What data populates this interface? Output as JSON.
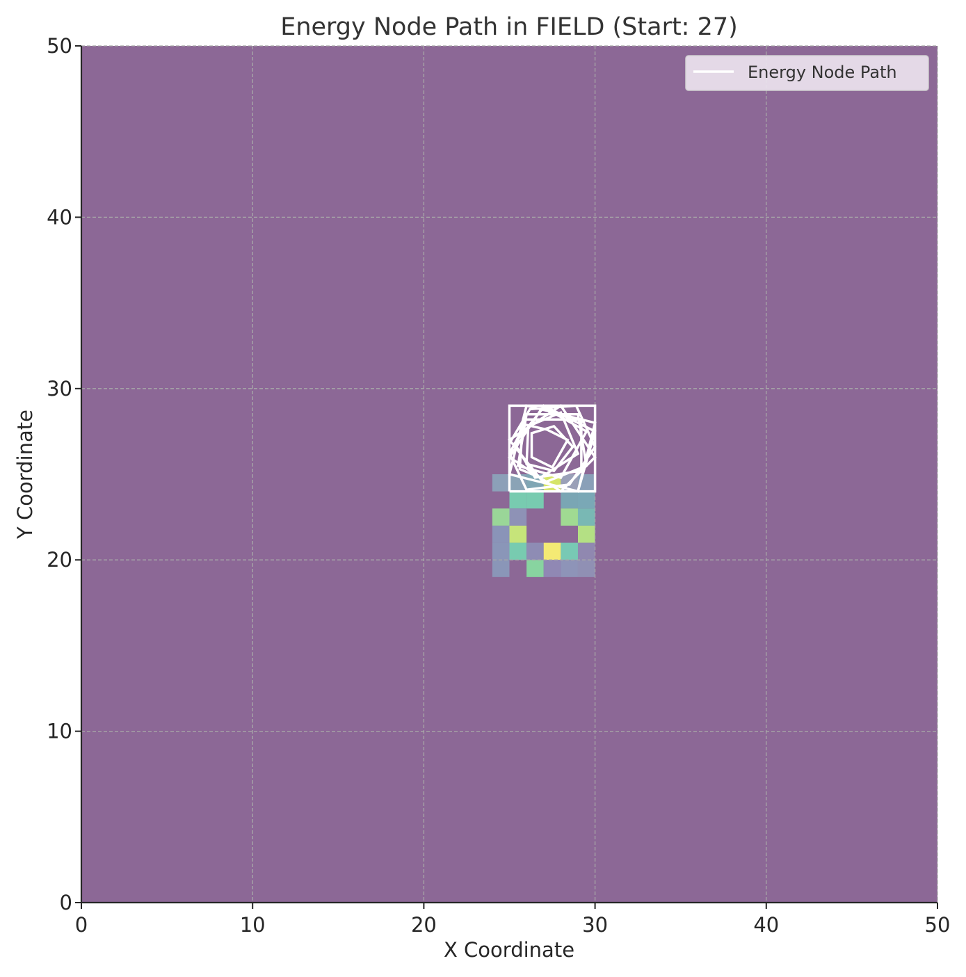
{
  "chart_data": {
    "type": "heatmap",
    "title": "Energy Node Path in FIELD (Start: 27)",
    "xlabel": "X Coordinate",
    "ylabel": "Y Coordinate",
    "xlim": [
      0,
      50
    ],
    "ylim": [
      0,
      50
    ],
    "xticks": [
      0,
      10,
      20,
      30,
      40,
      50
    ],
    "yticks": [
      0,
      10,
      20,
      30,
      40,
      50
    ],
    "grid": true,
    "legend": {
      "placement": "top-right",
      "entries": [
        "Energy Node Path"
      ]
    },
    "colors": {
      "background_field": "#8c6896",
      "path": "#ffffff",
      "grid": "#a8a8a8",
      "axis": "#262626"
    },
    "field_cells": [
      {
        "x": 24,
        "y": 24,
        "color": "#8ca0b8"
      },
      {
        "x": 25,
        "y": 24,
        "color": "#8aa3b6"
      },
      {
        "x": 26,
        "y": 24,
        "color": "#7fa6b4"
      },
      {
        "x": 27,
        "y": 24,
        "color": "#d6e568"
      },
      {
        "x": 28,
        "y": 24,
        "color": "#9aa0b8"
      },
      {
        "x": 29,
        "y": 24,
        "color": "#8aa0b8"
      },
      {
        "x": 25,
        "y": 23,
        "color": "#78cbb0"
      },
      {
        "x": 26,
        "y": 23,
        "color": "#78cbb0"
      },
      {
        "x": 28,
        "y": 23,
        "color": "#7aa6b4"
      },
      {
        "x": 29,
        "y": 23,
        "color": "#7aa8b6"
      },
      {
        "x": 24,
        "y": 22,
        "color": "#9ad698"
      },
      {
        "x": 25,
        "y": 22,
        "color": "#8e92b6"
      },
      {
        "x": 28,
        "y": 22,
        "color": "#a0da92"
      },
      {
        "x": 29,
        "y": 22,
        "color": "#79b8b4"
      },
      {
        "x": 24,
        "y": 21,
        "color": "#8a94b8"
      },
      {
        "x": 25,
        "y": 21,
        "color": "#c6e47a"
      },
      {
        "x": 29,
        "y": 21,
        "color": "#b4e084"
      },
      {
        "x": 24,
        "y": 20,
        "color": "#8a96b8"
      },
      {
        "x": 25,
        "y": 20,
        "color": "#78cbb0"
      },
      {
        "x": 26,
        "y": 20,
        "color": "#8e8cb4"
      },
      {
        "x": 27,
        "y": 20,
        "color": "#f4ea74"
      },
      {
        "x": 28,
        "y": 20,
        "color": "#78c9b4"
      },
      {
        "x": 29,
        "y": 20,
        "color": "#9088b0"
      },
      {
        "x": 24,
        "y": 19,
        "color": "#8a96b8"
      },
      {
        "x": 26,
        "y": 19,
        "color": "#88d4a0"
      },
      {
        "x": 27,
        "y": 19,
        "color": "#9088b4"
      },
      {
        "x": 28,
        "y": 19,
        "color": "#8e94b8"
      },
      {
        "x": 29,
        "y": 19,
        "color": "#9090b4"
      }
    ],
    "series": [
      {
        "name": "Energy Node Path",
        "points": [
          [
            25,
            24
          ],
          [
            25,
            29
          ],
          [
            30,
            29
          ],
          [
            30,
            24
          ],
          [
            25,
            24
          ],
          [
            29,
            24
          ],
          [
            30,
            28
          ],
          [
            26,
            29
          ],
          [
            25,
            25
          ],
          [
            29,
            24
          ],
          [
            30,
            27.5
          ],
          [
            27,
            29
          ],
          [
            25,
            26
          ],
          [
            28,
            24
          ],
          [
            30,
            26
          ],
          [
            28,
            29
          ],
          [
            25,
            27
          ],
          [
            27,
            24.5
          ],
          [
            29.5,
            25.5
          ],
          [
            29,
            28.5
          ],
          [
            26,
            28.5
          ],
          [
            25.5,
            25.5
          ],
          [
            28,
            24.8
          ],
          [
            29.5,
            27.5
          ],
          [
            27,
            28.9
          ],
          [
            25.3,
            26.8
          ],
          [
            26.5,
            24.8
          ],
          [
            29.2,
            25.2
          ],
          [
            29.2,
            28.2
          ],
          [
            25.8,
            28.2
          ],
          [
            25.6,
            25.3
          ],
          [
            26.8,
            24.8
          ],
          [
            29,
            26.2
          ],
          [
            28,
            28.6
          ],
          [
            26.1,
            27.8
          ],
          [
            26,
            25.6
          ],
          [
            27.6,
            25.2
          ],
          [
            28.7,
            26.6
          ],
          [
            27.6,
            27.8
          ],
          [
            26.3,
            27.4
          ],
          [
            26.3,
            26
          ],
          [
            27.5,
            25.4
          ],
          [
            28.4,
            27
          ],
          [
            27.2,
            27.6
          ],
          [
            25.9,
            27.9
          ],
          [
            25,
            26.2
          ],
          [
            26,
            24.1
          ],
          [
            28.5,
            24.4
          ],
          [
            30,
            26.6
          ],
          [
            28.9,
            29
          ],
          [
            26.2,
            28.8
          ],
          [
            25,
            26.8
          ]
        ]
      }
    ]
  }
}
